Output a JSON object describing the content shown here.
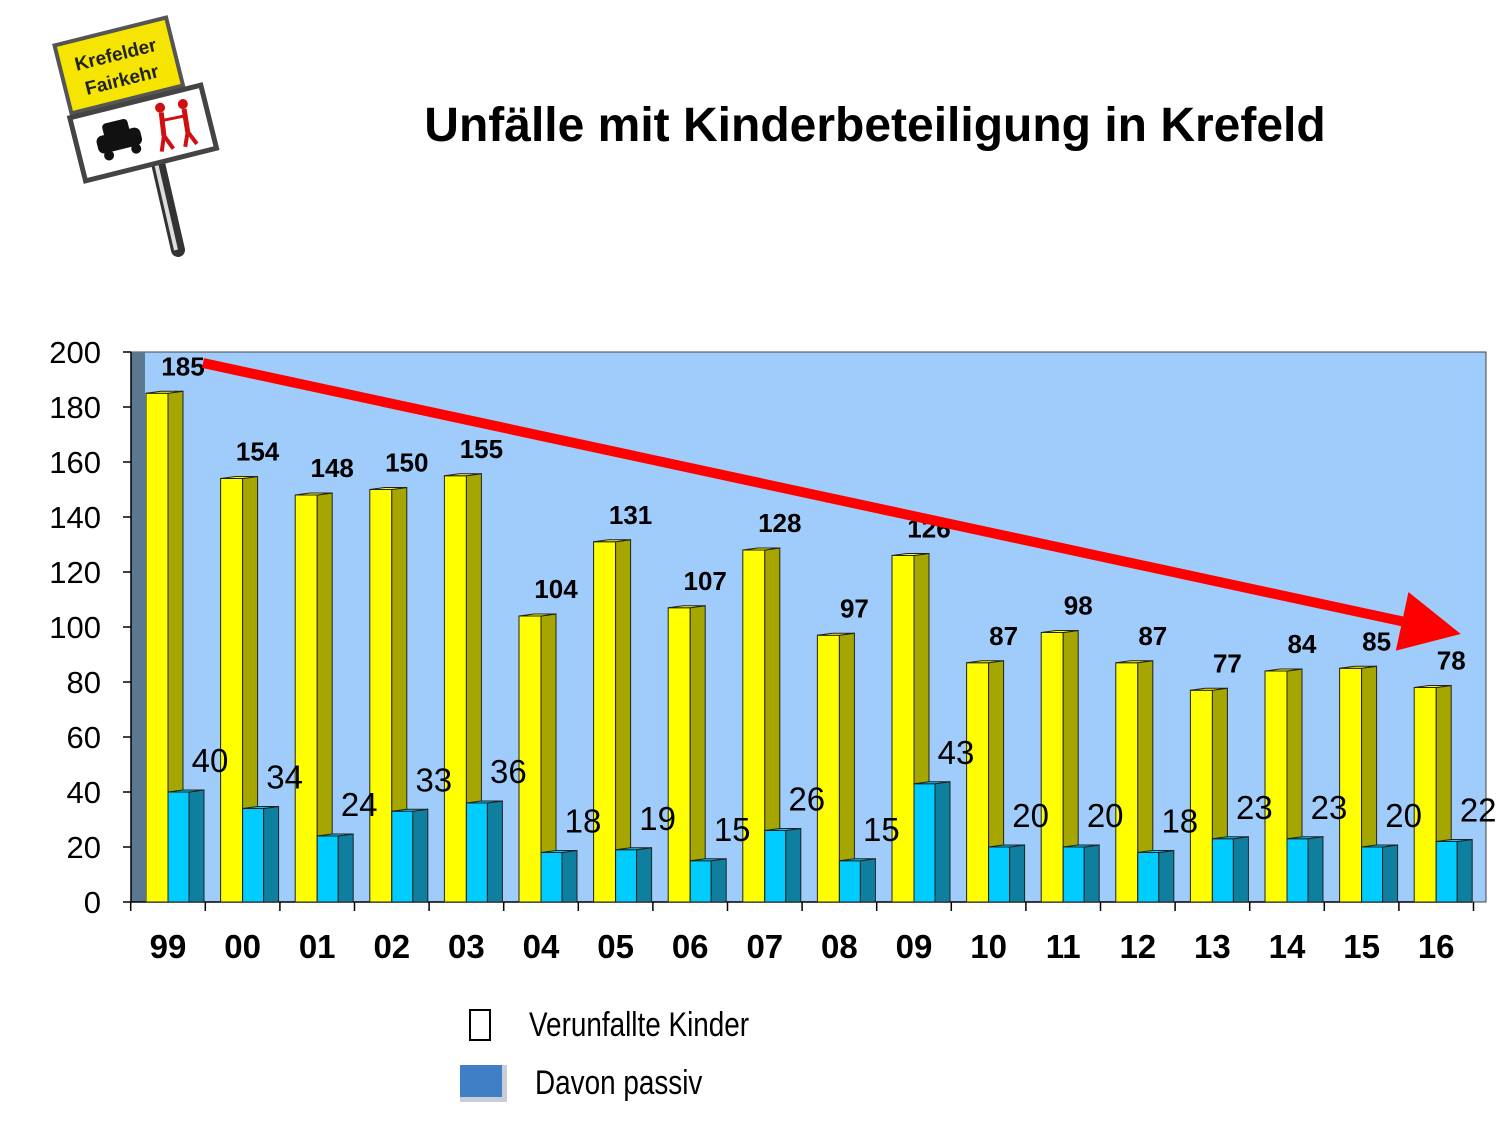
{
  "logo": {
    "line1": "Krefelder",
    "line2": "Fairkehr"
  },
  "title": "Unfälle mit Kinderbeteiligung in Krefeld",
  "colors": {
    "plot_background": "#9fccfa",
    "bar_primary": "#ffff00",
    "bar_primary_side": "#a6a600",
    "bar_secondary": "#00ccff",
    "bar_secondary_side": "#0f7fa0",
    "trend_arrow": "#ff0000",
    "legend_swatch": "#3f7fc6"
  },
  "chart_data": {
    "type": "bar",
    "categories": [
      "99",
      "00",
      "01",
      "02",
      "03",
      "04",
      "05",
      "06",
      "07",
      "08",
      "09",
      "10",
      "11",
      "12",
      "13",
      "14",
      "15",
      "16"
    ],
    "series": [
      {
        "name": "Verunfallte Kinder",
        "values": [
          185,
          154,
          148,
          150,
          155,
          104,
          131,
          107,
          128,
          97,
          126,
          87,
          98,
          87,
          77,
          84,
          85,
          78
        ]
      },
      {
        "name": "Davon passiv",
        "values": [
          40,
          34,
          24,
          33,
          36,
          18,
          19,
          15,
          26,
          15,
          43,
          20,
          20,
          18,
          23,
          23,
          20,
          22
        ]
      }
    ],
    "y_ticks": [
      0,
      20,
      40,
      60,
      80,
      100,
      120,
      140,
      160,
      180,
      200
    ],
    "ylim": [
      0,
      200
    ],
    "grid": false,
    "legend_position": "bottom",
    "trend": {
      "type": "arrow",
      "from": {
        "category": "99",
        "value": 196
      },
      "to": {
        "category": "16",
        "value": 99
      }
    }
  },
  "legend": [
    {
      "label": "Verunfallte Kinder"
    },
    {
      "label": "Davon passiv"
    }
  ]
}
